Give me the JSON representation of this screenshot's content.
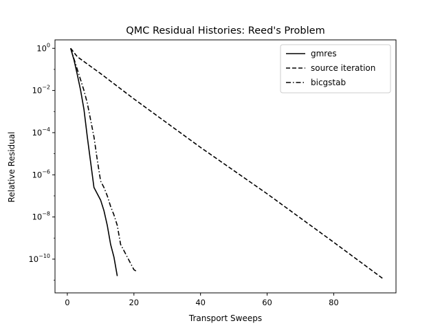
{
  "chart_data": {
    "type": "line",
    "title": "QMC Residual Histories: Reed's Problem",
    "xlabel": "Transport Sweeps",
    "ylabel": "Relative Residual",
    "xlim": [
      -3.7,
      98.7
    ],
    "ylim_log10": [
      -11.6,
      0.4
    ],
    "yscale": "log",
    "grid": false,
    "legend_position": "top-right",
    "x_ticks": [
      {
        "value": 0,
        "label": "0"
      },
      {
        "value": 20,
        "label": "20"
      },
      {
        "value": 40,
        "label": "40"
      },
      {
        "value": 60,
        "label": "60"
      },
      {
        "value": 80,
        "label": "80"
      }
    ],
    "y_ticks": [
      {
        "exp": 0,
        "base": "10",
        "sup": "0"
      },
      {
        "exp": -2,
        "base": "10",
        "sup": "−2"
      },
      {
        "exp": -4,
        "base": "10",
        "sup": "−4"
      },
      {
        "exp": -6,
        "base": "10",
        "sup": "−6"
      },
      {
        "exp": -8,
        "base": "10",
        "sup": "−8"
      },
      {
        "exp": -10,
        "base": "10",
        "sup": "−10"
      }
    ],
    "series": [
      {
        "name": "gmres",
        "dash": "solid",
        "x": [
          1,
          2,
          3,
          4,
          5,
          6,
          7,
          8,
          9,
          10,
          11,
          12,
          13,
          14,
          15
        ],
        "log10_y": [
          0,
          -0.55,
          -1.25,
          -2.0,
          -2.9,
          -4.2,
          -5.4,
          -6.6,
          -6.9,
          -7.2,
          -7.7,
          -8.4,
          -9.3,
          -9.9,
          -10.8
        ]
      },
      {
        "name": "source iteration",
        "dash": "dashed",
        "x": [
          1,
          3,
          10,
          20,
          40,
          60,
          80,
          95
        ],
        "log10_y": [
          0,
          -0.4,
          -1.2,
          -2.4,
          -4.7,
          -6.9,
          -9.2,
          -10.95
        ]
      },
      {
        "name": "bicgstab",
        "dash": "dashdot",
        "x": [
          1,
          2,
          3,
          4,
          5,
          6,
          7,
          8,
          9,
          10,
          11,
          12,
          13,
          14,
          15,
          16,
          17,
          18,
          19,
          20,
          21
        ],
        "log10_y": [
          0,
          -0.5,
          -1.0,
          -1.5,
          -2.0,
          -2.6,
          -3.4,
          -4.2,
          -5.3,
          -6.3,
          -6.6,
          -7.0,
          -7.5,
          -7.9,
          -8.4,
          -9.3,
          -9.6,
          -9.9,
          -10.2,
          -10.5,
          -10.6
        ]
      }
    ]
  }
}
